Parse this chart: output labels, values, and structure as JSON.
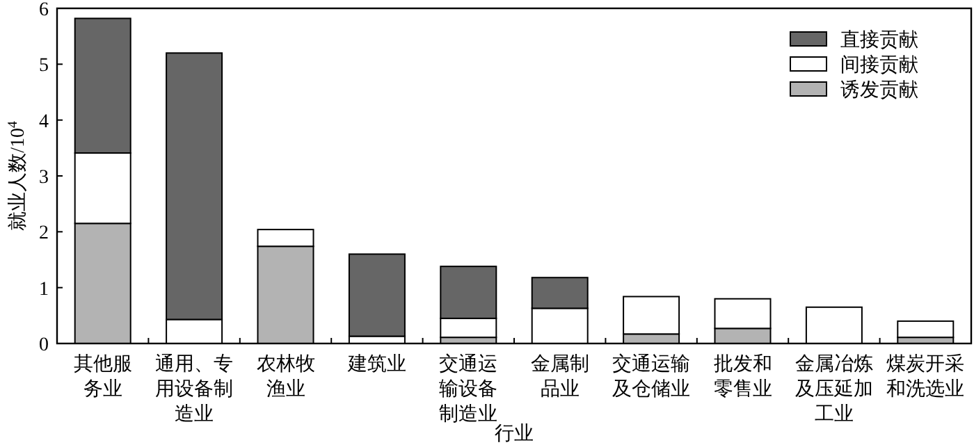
{
  "chart_data": {
    "type": "bar",
    "stacked": true,
    "xlabel": "行业",
    "ylabel": "就业人数/10$^{4}$",
    "categories": [
      "其他服务业",
      "通用、专用设备制造业",
      "农林牧渔业",
      "建筑业",
      "交通运输设备制造业",
      "金属制品业",
      "交通运输及仓储业",
      "批发和零售业",
      "金属冶炼及压延加工业",
      "煤炭开采和洗选业"
    ],
    "series": [
      {
        "name": "诱发贡献",
        "color": "#b3b3b3",
        "values": [
          2.15,
          null,
          1.74,
          null,
          0.11,
          null,
          0.17,
          0.27,
          null,
          0.11
        ]
      },
      {
        "name": "间接贡献",
        "color": "#ffffff",
        "values": [
          1.26,
          0.43,
          0.3,
          0.13,
          0.34,
          0.63,
          0.67,
          0.53,
          0.65,
          0.29
        ]
      },
      {
        "name": "直接贡献",
        "color": "#666666",
        "values": [
          2.41,
          4.77,
          0,
          1.47,
          0.93,
          0.55,
          0,
          0,
          0,
          0
        ]
      }
    ],
    "ylim": [
      0,
      6
    ],
    "yticks": [
      0,
      1,
      2,
      3,
      4,
      5,
      6
    ],
    "legend": "top right"
  }
}
